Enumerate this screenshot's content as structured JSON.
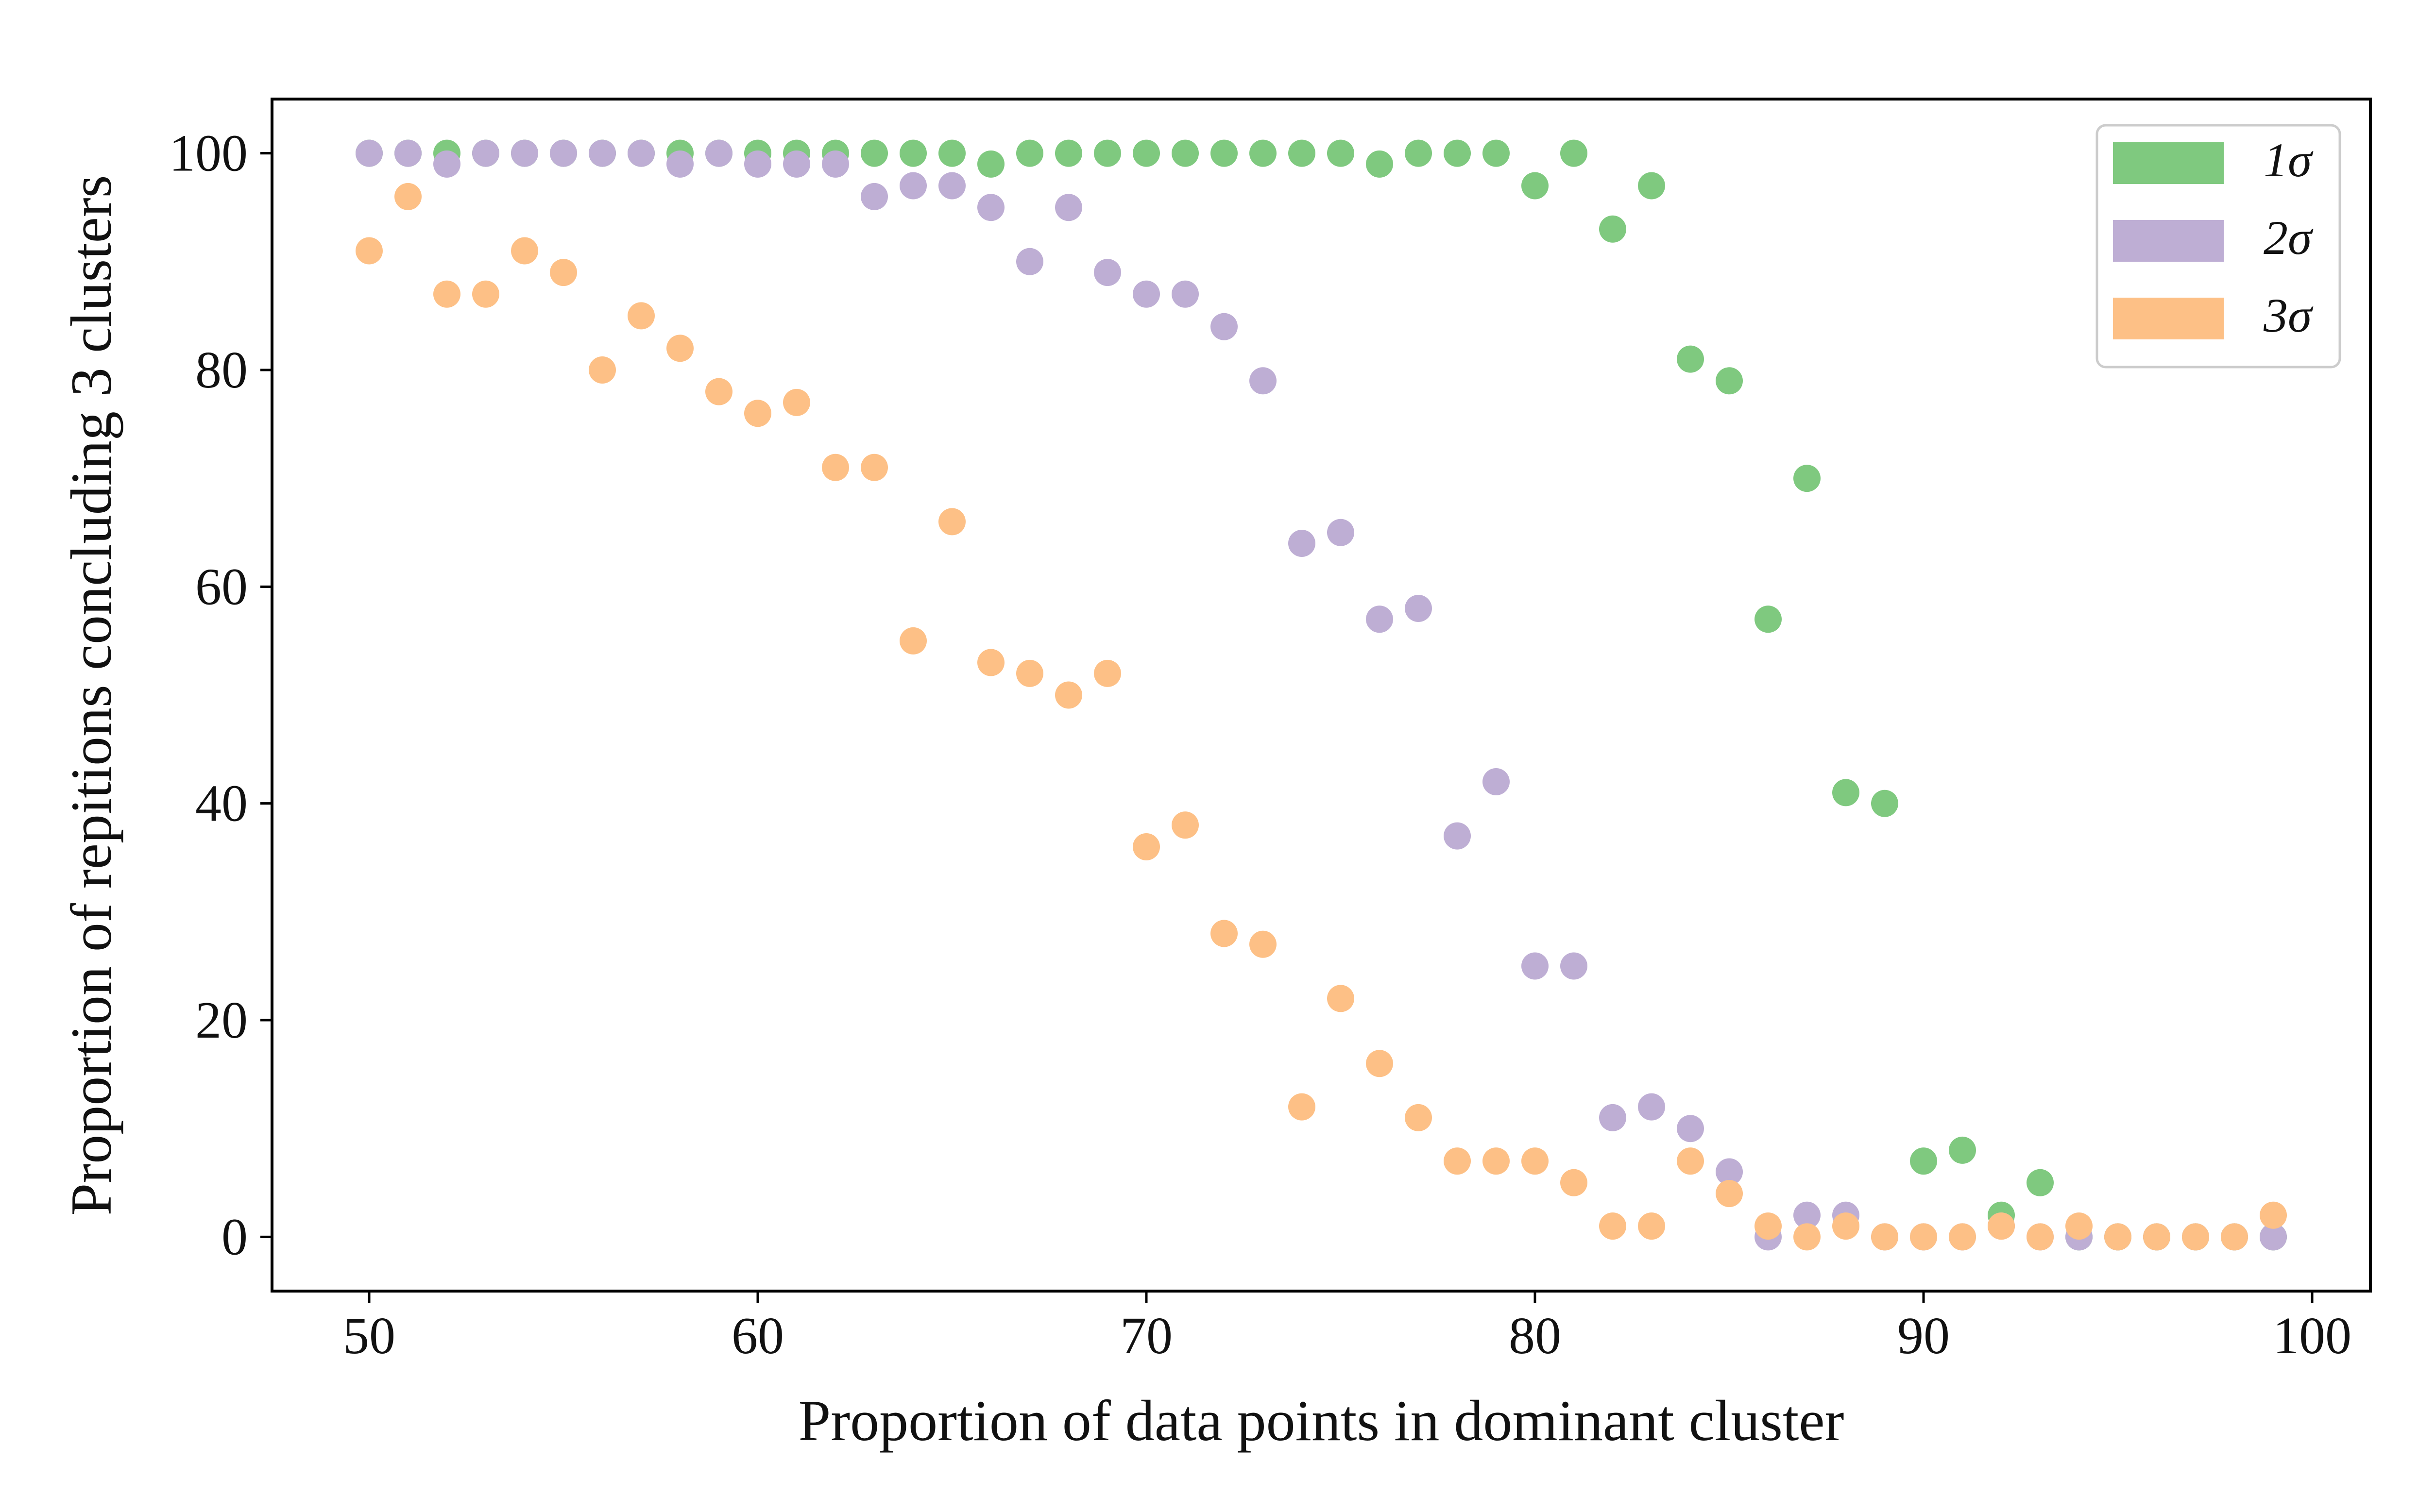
{
  "chart_data": {
    "type": "scatter",
    "title": "",
    "xlabel": "Proportion of data points in dominant cluster",
    "ylabel": "Proportion of repitions concluding 3 clusters",
    "xlim": [
      47.5,
      101.5
    ],
    "ylim": [
      -5,
      105
    ],
    "xticks": [
      50,
      60,
      70,
      80,
      90,
      100
    ],
    "yticks": [
      0,
      20,
      40,
      60,
      80,
      100
    ],
    "xtick_labels": [
      "50",
      "60",
      "70",
      "80",
      "90",
      "100"
    ],
    "ytick_labels": [
      "0",
      "20",
      "40",
      "60",
      "80",
      "100"
    ],
    "grid": false,
    "legend_position": "top-right",
    "x": [
      50,
      51,
      52,
      53,
      54,
      55,
      56,
      57,
      58,
      59,
      60,
      61,
      62,
      63,
      64,
      65,
      66,
      67,
      68,
      69,
      70,
      71,
      72,
      73,
      74,
      75,
      76,
      77,
      78,
      79,
      80,
      81,
      82,
      83,
      84,
      85,
      86,
      87,
      88,
      89,
      90,
      91,
      92,
      93,
      94,
      95,
      96,
      97,
      98,
      99
    ],
    "series": [
      {
        "name": "1σ",
        "color": "#7fc97f",
        "values": [
          100,
          100,
          100,
          100,
          100,
          100,
          100,
          100,
          100,
          100,
          100,
          100,
          100,
          100,
          100,
          100,
          99,
          100,
          100,
          100,
          100,
          100,
          100,
          100,
          100,
          100,
          99,
          100,
          100,
          100,
          97,
          100,
          93,
          97,
          81,
          79,
          57,
          70,
          41,
          40,
          7,
          8,
          2,
          5,
          0,
          0,
          0,
          0,
          0,
          0
        ]
      },
      {
        "name": "2σ",
        "color": "#beaed4",
        "values": [
          100,
          100,
          99,
          100,
          100,
          100,
          100,
          100,
          99,
          100,
          99,
          99,
          99,
          96,
          97,
          97,
          95,
          90,
          95,
          89,
          87,
          87,
          84,
          79,
          64,
          65,
          57,
          58,
          37,
          42,
          25,
          25,
          11,
          12,
          10,
          6,
          0,
          2,
          2,
          0,
          0,
          0,
          1,
          0,
          0,
          0,
          0,
          0,
          0,
          0
        ]
      },
      {
        "name": "3σ",
        "color": "#fdc086",
        "values": [
          91,
          96,
          87,
          87,
          91,
          89,
          80,
          85,
          82,
          78,
          76,
          77,
          71,
          71,
          55,
          66,
          53,
          52,
          50,
          52,
          36,
          38,
          28,
          27,
          12,
          22,
          16,
          11,
          7,
          7,
          7,
          5,
          1,
          1,
          7,
          4,
          1,
          0,
          1,
          0,
          0,
          0,
          1,
          0,
          1,
          0,
          0,
          0,
          0,
          2
        ]
      }
    ]
  }
}
